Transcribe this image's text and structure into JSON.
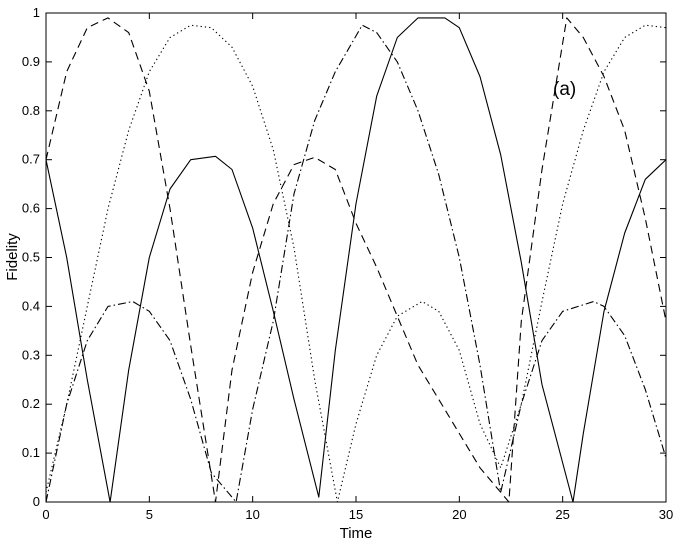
{
  "chart_data": {
    "type": "line",
    "title": "",
    "xlabel": "Time",
    "ylabel": "Fidelity",
    "xlim": [
      0,
      30
    ],
    "ylim": [
      0,
      1
    ],
    "xticks": [
      0,
      5,
      10,
      15,
      20,
      25,
      30
    ],
    "xtick_labels": [
      "0",
      "5",
      "10",
      "15",
      "20",
      "25",
      "30"
    ],
    "yticks": [
      0,
      0.1,
      0.2,
      0.3,
      0.4,
      0.5,
      0.6,
      0.7,
      0.8,
      0.9,
      1
    ],
    "ytick_labels": [
      "0",
      "0.1",
      "0.2",
      "0.3",
      "0.4",
      "0.5",
      "0.6",
      "0.7",
      "0.8",
      "0.9",
      "1"
    ],
    "grid": false,
    "legend": "none",
    "annotation": "(a)",
    "series": [
      {
        "style": "solid",
        "x": [
          0,
          1,
          2,
          3.1,
          4,
          5,
          6,
          7,
          8.2,
          9,
          10,
          11,
          12,
          13.2,
          14,
          15,
          16,
          17,
          18,
          19.3,
          20,
          21,
          22,
          23,
          24,
          25.5,
          26,
          27,
          28,
          29,
          30
        ],
        "y": [
          0.7,
          0.5,
          0.25,
          0.0,
          0.27,
          0.5,
          0.64,
          0.7,
          0.707,
          0.68,
          0.56,
          0.39,
          0.21,
          0.01,
          0.31,
          0.61,
          0.83,
          0.95,
          0.99,
          0.99,
          0.97,
          0.87,
          0.71,
          0.49,
          0.24,
          0.0,
          0.14,
          0.39,
          0.55,
          0.66,
          0.7
        ]
      },
      {
        "style": "dashed",
        "x": [
          0,
          1,
          2,
          3,
          4,
          5,
          6,
          7,
          8.2,
          9,
          10,
          11,
          12,
          13,
          14,
          15,
          16,
          17,
          18,
          19,
          20,
          21,
          22.4,
          23,
          24,
          25.2,
          26,
          27,
          28,
          29,
          30
        ],
        "y": [
          0.7,
          0.88,
          0.97,
          0.99,
          0.96,
          0.84,
          0.6,
          0.32,
          0.0,
          0.27,
          0.47,
          0.61,
          0.69,
          0.705,
          0.68,
          0.57,
          0.48,
          0.38,
          0.28,
          0.21,
          0.14,
          0.07,
          0.0,
          0.37,
          0.68,
          0.99,
          0.95,
          0.87,
          0.76,
          0.58,
          0.37
        ]
      },
      {
        "style": "dotted",
        "x": [
          0,
          1,
          2,
          3,
          4,
          5,
          6,
          7,
          8,
          9,
          10,
          11,
          12,
          13,
          14.1,
          15,
          16,
          17,
          18.2,
          19,
          20,
          21,
          22,
          23,
          24,
          25,
          26,
          27,
          28,
          29,
          30
        ],
        "y": [
          0.02,
          0.2,
          0.4,
          0.6,
          0.76,
          0.88,
          0.95,
          0.975,
          0.97,
          0.93,
          0.85,
          0.72,
          0.52,
          0.25,
          0.0,
          0.16,
          0.3,
          0.38,
          0.41,
          0.39,
          0.31,
          0.16,
          0.07,
          0.2,
          0.41,
          0.61,
          0.76,
          0.88,
          0.95,
          0.975,
          0.97
        ]
      },
      {
        "style": "dashdot",
        "x": [
          0,
          1,
          2,
          3,
          4.2,
          5,
          6,
          7,
          8,
          9.2,
          10,
          11,
          12,
          13,
          14,
          15.3,
          16,
          17,
          18,
          19,
          20,
          21,
          22,
          23,
          24,
          25,
          26.5,
          27,
          28,
          29,
          30
        ],
        "y": [
          0.0,
          0.2,
          0.33,
          0.4,
          0.41,
          0.39,
          0.33,
          0.21,
          0.06,
          0.0,
          0.19,
          0.37,
          0.63,
          0.78,
          0.88,
          0.975,
          0.96,
          0.9,
          0.8,
          0.67,
          0.5,
          0.28,
          0.02,
          0.2,
          0.33,
          0.39,
          0.41,
          0.4,
          0.34,
          0.23,
          0.09
        ]
      }
    ]
  }
}
